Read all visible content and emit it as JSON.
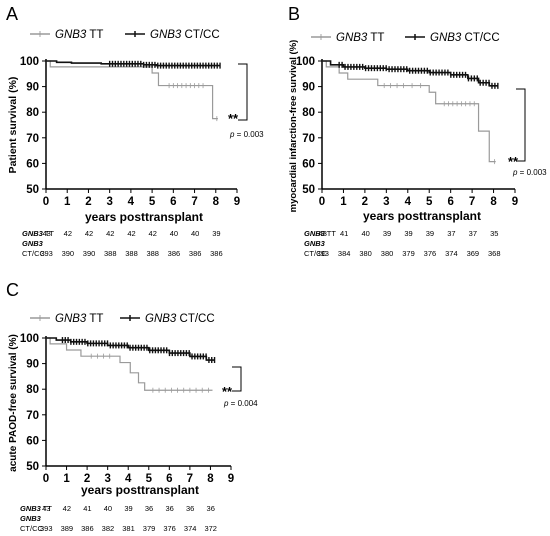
{
  "colors": {
    "tt": "#9a9a9a",
    "ctcc": "#111111",
    "axis": "#000000"
  },
  "chart_data": [
    {
      "type": "line",
      "panel_label": "A",
      "legend": {
        "tt_gene": "GNB3",
        "tt_label": " TT",
        "ctcc_gene": "GNB3",
        "ctcc_label": " CT/CC",
        "placement": "top"
      },
      "xlabel": "years posttransplant",
      "ylabel": "Patient survival (%)",
      "xlim": [
        0,
        9
      ],
      "ylim": [
        50,
        100
      ],
      "xticks": [
        "0",
        "1",
        "2",
        "3",
        "4",
        "5",
        "6",
        "7",
        "8",
        "9"
      ],
      "yticks": [
        "50",
        "60",
        "70",
        "80",
        "90",
        "100"
      ],
      "series": [
        {
          "name": "GNB3 TT",
          "style": "tt",
          "steps": [
            [
              0,
              100
            ],
            [
              0.2,
              97.7
            ],
            [
              5.0,
              95.3
            ],
            [
              5.3,
              90.4
            ],
            [
              7.85,
              77.5
            ],
            [
              8.1,
              77.5
            ]
          ],
          "censors": [
            5.8,
            6.0,
            6.2,
            6.4,
            6.6,
            6.8,
            7.0,
            7.2,
            7.4,
            8.05
          ]
        },
        {
          "name": "GNB3 CT/CC",
          "style": "ctcc",
          "steps": [
            [
              0,
              100
            ],
            [
              0.5,
              99.5
            ],
            [
              1.2,
              99.2
            ],
            [
              2.6,
              98.9
            ],
            [
              4.6,
              98.5
            ],
            [
              5.2,
              98.2
            ],
            [
              8.2,
              98.2
            ]
          ],
          "censor_range": [
            3.0,
            8.2
          ],
          "censor_count": 40
        }
      ],
      "significance": {
        "stars": "**",
        "p_label": "p",
        "p_value": " = 0.003"
      },
      "risk_table": {
        "tt_row": {
          "gene": "GNB3",
          "label": " TT",
          "values": [
            "43",
            "42",
            "42",
            "42",
            "42",
            "42",
            "40",
            "40",
            "39"
          ]
        },
        "ctcc_row": {
          "gene": "GNB3",
          "label": "CT/CC",
          "values": [
            "393",
            "390",
            "390",
            "388",
            "388",
            "388",
            "386",
            "386",
            "386"
          ]
        }
      }
    },
    {
      "type": "line",
      "panel_label": "B",
      "legend": {
        "tt_gene": "GNB3",
        "tt_label": " TT",
        "ctcc_gene": "GNB3",
        "ctcc_label": " CT/CC",
        "placement": "top"
      },
      "xlabel": "years posttransplant",
      "ylabel": "myocardial infarction-free survival (%)",
      "xlim": [
        0,
        9
      ],
      "ylim": [
        50,
        100
      ],
      "xticks": [
        "0",
        "1",
        "2",
        "3",
        "4",
        "5",
        "6",
        "7",
        "8",
        "9"
      ],
      "yticks": [
        "50",
        "60",
        "70",
        "80",
        "90",
        "100"
      ],
      "series": [
        {
          "name": "GNB3 TT",
          "style": "tt",
          "steps": [
            [
              0,
              100
            ],
            [
              0.2,
              97.7
            ],
            [
              0.8,
              95.3
            ],
            [
              1.2,
              92.9
            ],
            [
              2.6,
              90.4
            ],
            [
              5.0,
              87.8
            ],
            [
              5.3,
              83.3
            ],
            [
              7.3,
              72.6
            ],
            [
              7.8,
              60.7
            ],
            [
              8.1,
              60.7
            ]
          ],
          "censors": [
            2.9,
            3.2,
            3.5,
            3.8,
            4.2,
            4.6,
            5.7,
            5.9,
            6.1,
            6.3,
            6.5,
            6.7,
            6.9,
            7.1,
            8.05
          ]
        },
        {
          "name": "GNB3 CT/CC",
          "style": "ctcc",
          "steps": [
            [
              0,
              100
            ],
            [
              0.4,
              98.5
            ],
            [
              1.0,
              97.7
            ],
            [
              2.0,
              97.2
            ],
            [
              3.0,
              96.8
            ],
            [
              4.0,
              96.2
            ],
            [
              5.0,
              95.5
            ],
            [
              6.0,
              94.6
            ],
            [
              6.8,
              93.2
            ],
            [
              7.3,
              91.5
            ],
            [
              7.8,
              90.3
            ],
            [
              8.2,
              90.3
            ]
          ],
          "censor_range": [
            0.8,
            8.2
          ],
          "censor_count": 55
        }
      ],
      "significance": {
        "stars": "**",
        "p_label": "p",
        "p_value": " = 0.003"
      },
      "risk_table": {
        "tt_row": {
          "gene": "GNB3",
          "label": " TT",
          "values": [
            "43",
            "41",
            "40",
            "39",
            "39",
            "39",
            "37",
            "37",
            "35"
          ]
        },
        "ctcc_row": {
          "gene": "GNB3",
          "label": "CT/CC",
          "values": [
            "393",
            "384",
            "380",
            "380",
            "379",
            "376",
            "374",
            "369",
            "368"
          ]
        }
      }
    },
    {
      "type": "line",
      "panel_label": "C",
      "legend": {
        "tt_gene": "GNB3",
        "tt_label": " TT",
        "ctcc_gene": "GNB3",
        "ctcc_label": " CT/CC",
        "placement": "top"
      },
      "xlabel": "years posttransplant",
      "ylabel": "acute PAOD-free survival (%)",
      "xlim": [
        0,
        9
      ],
      "ylim": [
        50,
        100
      ],
      "xticks": [
        "0",
        "1",
        "2",
        "3",
        "4",
        "5",
        "6",
        "7",
        "8",
        "9"
      ],
      "yticks": [
        "50",
        "60",
        "70",
        "80",
        "90",
        "100"
      ],
      "series": [
        {
          "name": "GNB3 TT",
          "style": "tt",
          "steps": [
            [
              0,
              100
            ],
            [
              0.2,
              97.7
            ],
            [
              1.0,
              95.3
            ],
            [
              1.7,
              92.9
            ],
            [
              3.6,
              90.4
            ],
            [
              4.1,
              86.4
            ],
            [
              4.5,
              82.5
            ],
            [
              4.8,
              79.6
            ],
            [
              8.1,
              79.6
            ]
          ],
          "censors": [
            2.2,
            2.5,
            2.8,
            3.1,
            5.2,
            5.5,
            5.8,
            6.1,
            6.4,
            6.7,
            7.0,
            7.3,
            7.6,
            7.9
          ]
        },
        {
          "name": "GNB3 CT/CC",
          "style": "ctcc",
          "steps": [
            [
              0,
              100
            ],
            [
              0.5,
              99.2
            ],
            [
              1.2,
              98.5
            ],
            [
              2.0,
              97.9
            ],
            [
              3.0,
              97.1
            ],
            [
              4.0,
              96.2
            ],
            [
              5.0,
              95.2
            ],
            [
              6.0,
              94.1
            ],
            [
              7.0,
              92.8
            ],
            [
              7.8,
              91.4
            ],
            [
              8.2,
              91.4
            ]
          ],
          "censor_range": [
            0.8,
            8.2
          ],
          "censor_count": 55
        }
      ],
      "significance": {
        "stars": "**",
        "p_label": "p",
        "p_value": " = 0.004"
      },
      "risk_table": {
        "tt_row": {
          "gene": "GNB3",
          "label": " TT",
          "values": [
            "43",
            "42",
            "41",
            "40",
            "39",
            "36",
            "36",
            "36",
            "36"
          ]
        },
        "ctcc_row": {
          "gene": "GNB3",
          "label": "CT/CC",
          "values": [
            "393",
            "389",
            "386",
            "382",
            "381",
            "379",
            "376",
            "374",
            "372"
          ]
        }
      }
    }
  ]
}
